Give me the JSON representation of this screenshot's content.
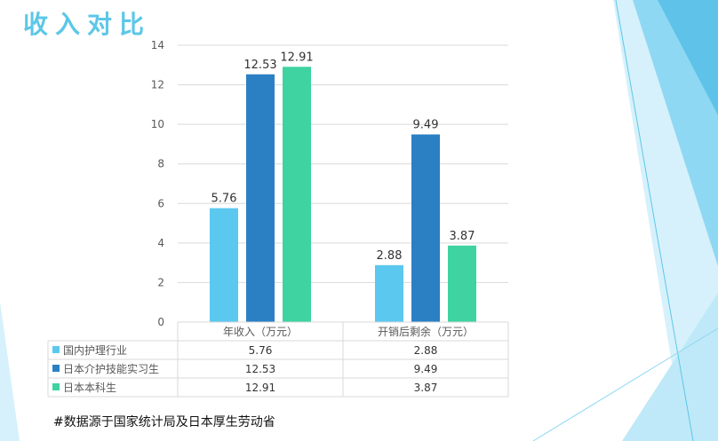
{
  "slide": {
    "title": "收入对比",
    "footnote": "#数据源于国家统计局及日本厚生劳动省"
  },
  "chart_data": {
    "type": "bar",
    "title": "",
    "xlabel": "",
    "ylabel": "",
    "ylim": [
      0,
      14
    ],
    "yticks": [
      0,
      2,
      4,
      6,
      8,
      10,
      12,
      14
    ],
    "grid": true,
    "categories": [
      "年收入（万元）",
      "开销后剩余（万元）"
    ],
    "series": [
      {
        "name": "国内护理行业",
        "values": [
          5.76,
          2.88
        ],
        "color": "#5bc8ef",
        "labels": [
          "5.76",
          "2.88"
        ]
      },
      {
        "name": "日本介护技能实习生",
        "values": [
          12.53,
          9.49
        ],
        "color": "#2b80c4",
        "labels": [
          "12.53",
          "9.49"
        ]
      },
      {
        "name": "日本本科生",
        "values": [
          12.91,
          3.87
        ],
        "color": "#3ed3a0",
        "labels": [
          "12.91",
          "3.87"
        ]
      }
    ],
    "legend_position": "data-table-left"
  },
  "colors": {
    "title": "#5cc7e8",
    "gridline": "#d9d9d9",
    "axis_text": "#595959",
    "deco_light": "#d6f1fb",
    "deco_mid": "#8fd8f3",
    "deco_dark": "#4fbce6"
  }
}
